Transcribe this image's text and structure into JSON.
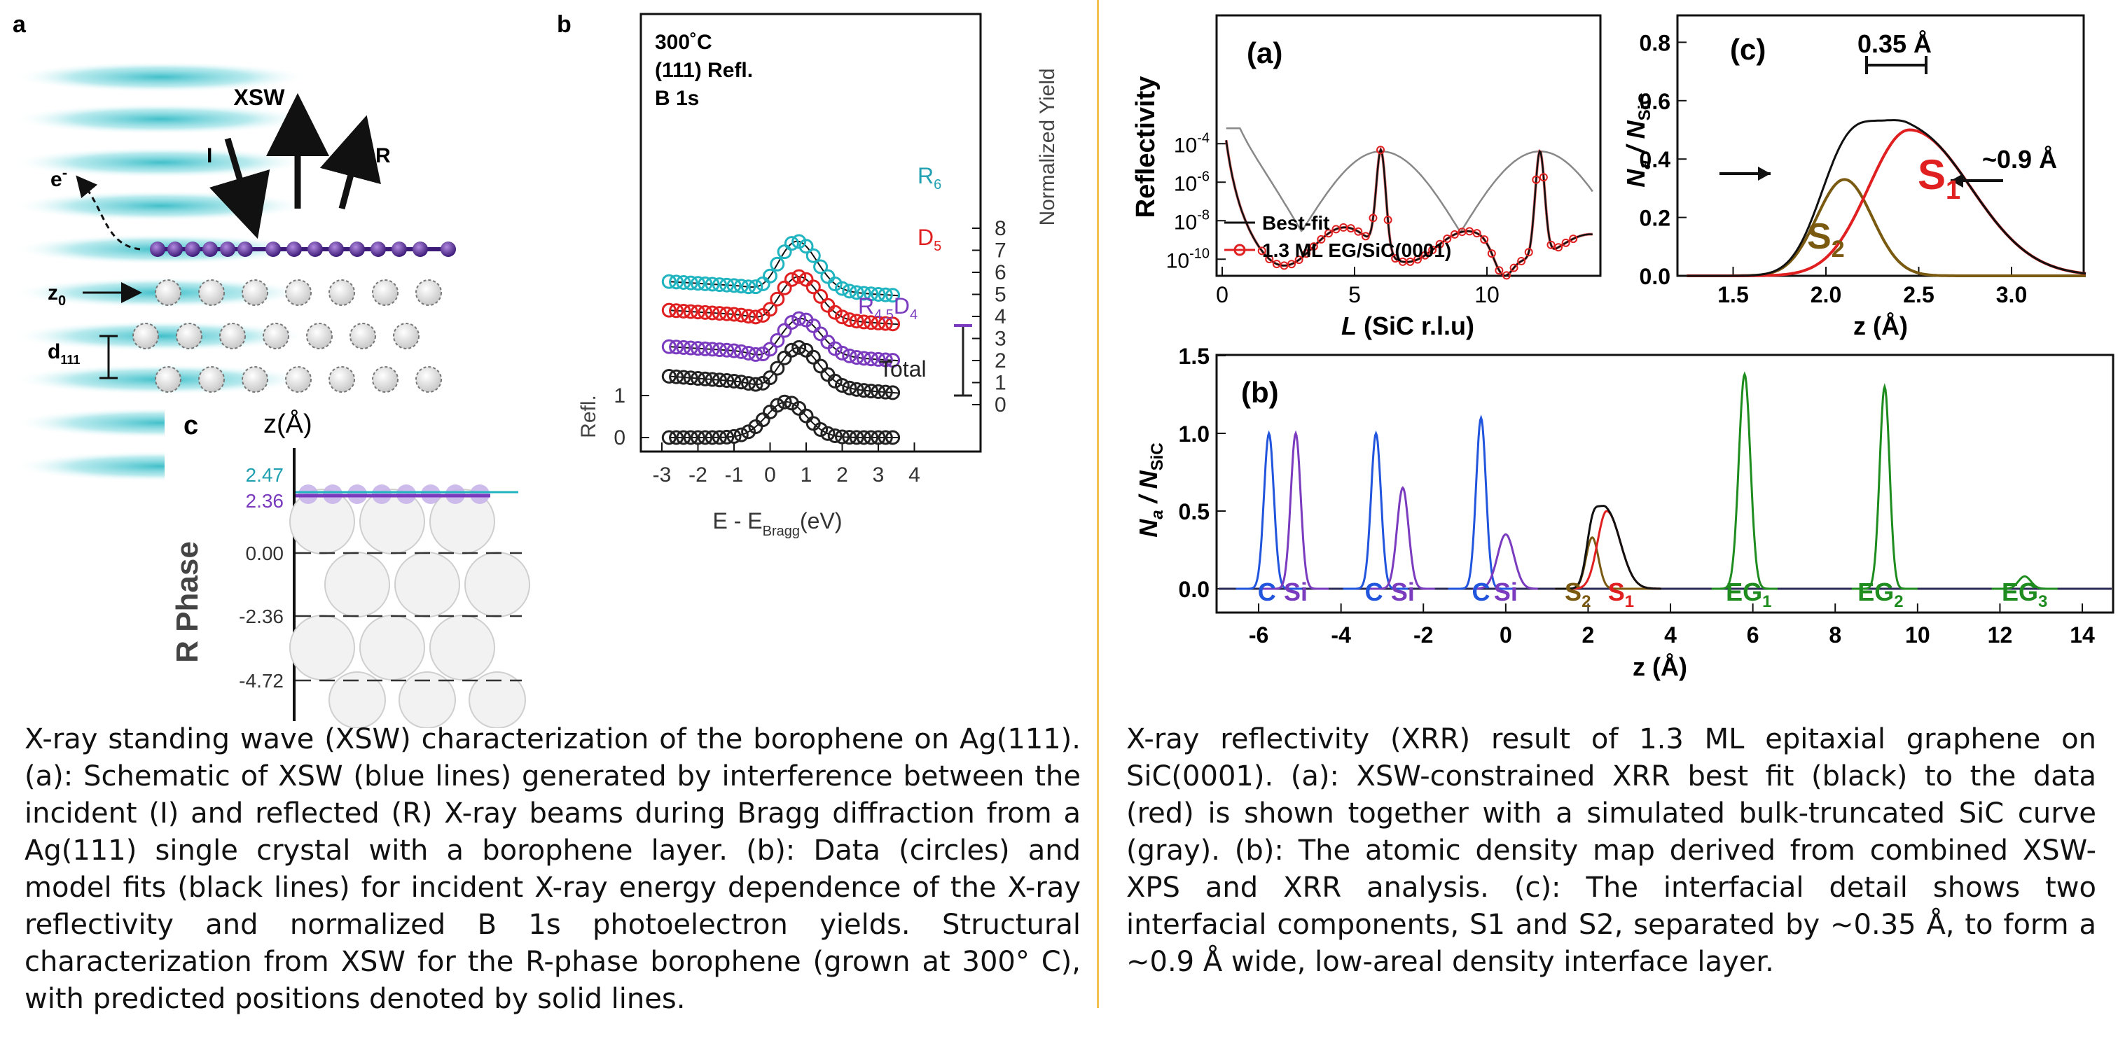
{
  "left": {
    "panel_a": {
      "letter": "a",
      "xsw": "XSW",
      "incident": "I",
      "reflected": "R",
      "electron": "e",
      "electron_sup": "-",
      "z0": "z",
      "z0_sub": "0",
      "d111": "d",
      "d111_sub": "111"
    },
    "panel_b": {
      "letter": "b",
      "header": [
        "300˚C",
        "(111) Refl.",
        "B 1s"
      ],
      "xlabel_main": "E - E",
      "xlabel_sub": "Bragg",
      "xlabel_unit": "(eV)",
      "ylabel_right": "Normalized Yield",
      "ylabel_left": "Refl.",
      "xticks": [
        "-3",
        "-2",
        "-1",
        "0",
        "1",
        "2",
        "3",
        "4"
      ],
      "right_ticks": [
        "0",
        "1",
        "2",
        "3",
        "4",
        "5",
        "6",
        "7",
        "8"
      ],
      "left_ticks": [
        "0",
        "1"
      ],
      "labels": {
        "r6": "R",
        "r6_sub": "6",
        "d5": "D",
        "d5_sub": "5",
        "r45": "R",
        "r45_sub": "4,5",
        "d4": "D",
        "d4_sub": "4",
        "total": "Total"
      }
    },
    "panel_c": {
      "letter": "c",
      "zlabel": "z(Å)",
      "ylabel": "R Phase",
      "levels": [
        "2.47",
        "2.36",
        "0.00",
        "-2.36",
        "-4.72"
      ]
    },
    "caption": "X-ray standing wave (XSW) characterization of the borophene on Ag(111). (a): Schematic of XSW (blue lines) generated by interference between the incident (I) and reflected (R) X-ray beams during Bragg diffraction from a Ag(111) single crystal with a borophene layer. (b): Data (circles) and model fits (black lines) for incident X-ray energy dependence of the X-ray reflectivity and normalized B 1s photoelectron yields. Structural characterization from XSW for the R-phase borophene (grown at 300° C), with predicted positions denoted by solid lines."
  },
  "right": {
    "panel_a": {
      "letter": "(a)",
      "ylabel": "Reflectivity",
      "xlabel_italic": "L",
      "xlabel_rest": " (SiC r.l.u)",
      "xticks": [
        "0",
        "5",
        "10"
      ],
      "yticks": [
        "10",
        "10",
        "10",
        "10"
      ],
      "yexp": [
        "-4",
        "-6",
        "-8",
        "-10"
      ],
      "legend": [
        "Best-fit",
        "1.3 ML EG/SiC(0001)"
      ]
    },
    "panel_b": {
      "letter": "(b)",
      "xlabel": "z (Å)",
      "ylabel_n": "N",
      "ylabel_a": "a",
      "ylabel_slash": " / N",
      "ylabel_sic": "SiC",
      "yticks": [
        "1.5",
        "1.0",
        "0.5",
        "0.0"
      ],
      "xticks": [
        "-6",
        "-4",
        "-2",
        "0",
        "2",
        "4",
        "6",
        "8",
        "10",
        "12",
        "14"
      ],
      "species": {
        "c": "C",
        "si": "Si",
        "s2": "S",
        "s2_sub": "2",
        "s1": "S",
        "s1_sub": "1",
        "eg": "EG",
        "eg1": "1",
        "eg2": "2",
        "eg3": "3"
      }
    },
    "panel_c": {
      "letter": "(c)",
      "xlabel": "z (Å)",
      "yticks": [
        "0.8",
        "0.6",
        "0.4",
        "0.2",
        "0.0"
      ],
      "xticks": [
        "1.5",
        "2.0",
        "2.5",
        "3.0"
      ],
      "sep": "0.35 Å",
      "width": "~0.9 Å",
      "s1": "S",
      "s1_sub": "1",
      "s2": "S",
      "s2_sub": "2"
    },
    "caption": "X-ray reflectivity (XRR) result of 1.3 ML epitaxial graphene on SiC(0001). (a): XSW-constrained XRR best fit (black) to the data (red) is shown together with a simulated bulk-truncated SiC curve (gray). (b): The atomic density map derived from combined XSW-XPS and XRR analysis. (c): The interfacial detail shows two interfacial components, S1 and S2, separated by ~0.35 Å, to form a ~0.9 Å wide, low-areal density interface layer."
  },
  "colors": {
    "teal": "#20b4c0",
    "red": "#e02020",
    "purple": "#7a3bbf",
    "green": "#1e8c1e",
    "blue": "#2255dd",
    "brown": "#7a5a10",
    "divider": "#f2c14e"
  }
}
